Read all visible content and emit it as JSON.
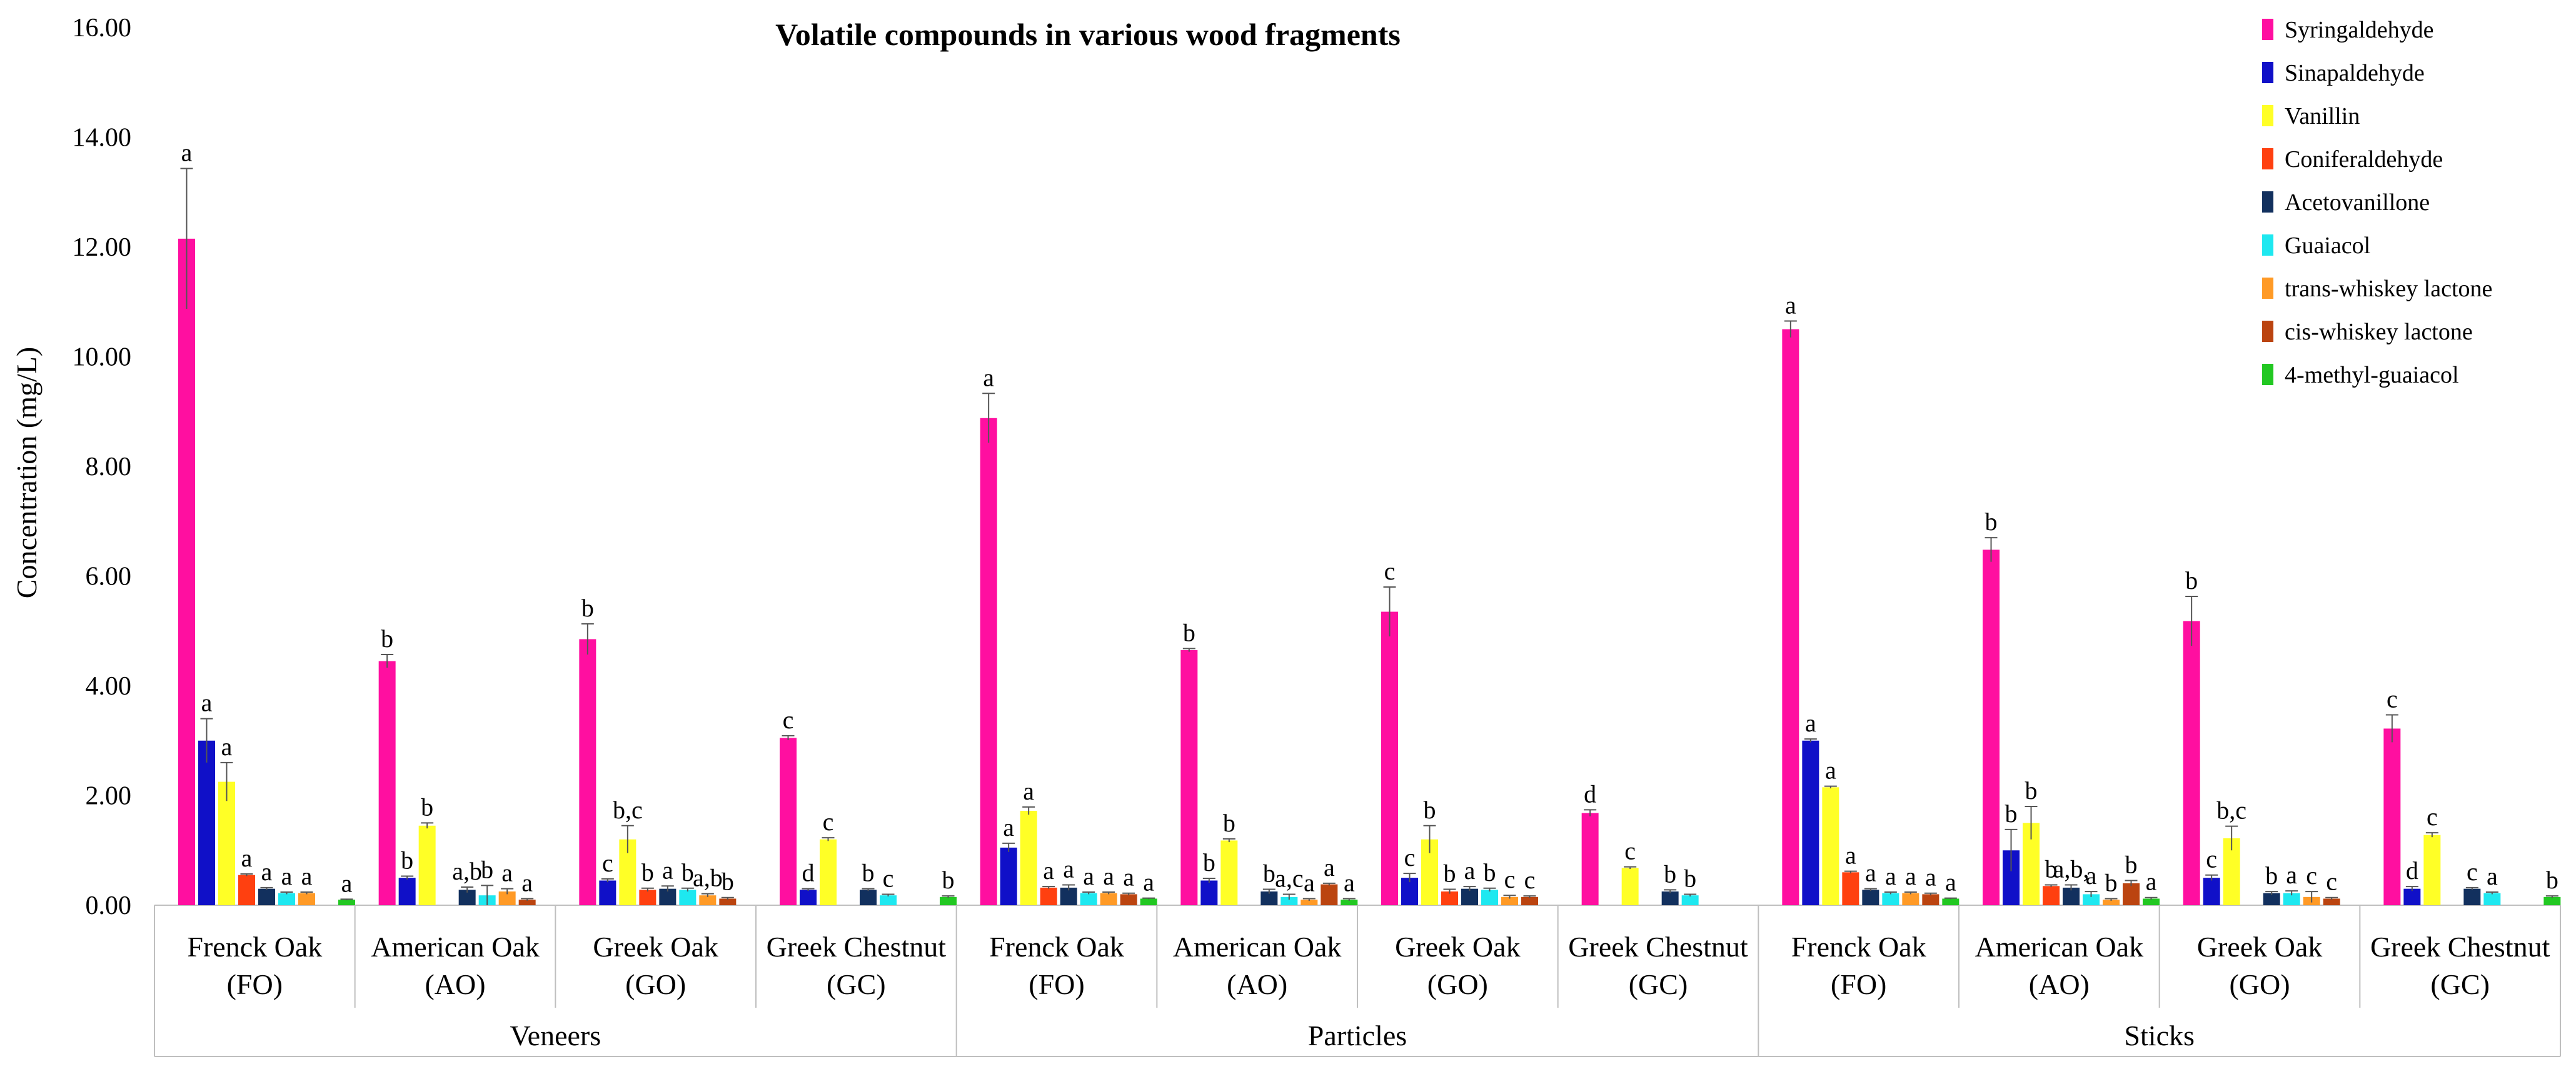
{
  "chart_data": {
    "type": "bar",
    "title": "Volatile compounds in various wood fragments",
    "xlabel": "",
    "ylabel": "Concentration (mg/L)",
    "ylim": [
      0,
      16
    ],
    "yticks": [
      "0.00",
      "2.00",
      "4.00",
      "6.00",
      "8.00",
      "10.00",
      "12.00",
      "14.00",
      "16.00"
    ],
    "grid": false,
    "legend_position": "top-right",
    "groups": [
      {
        "label": "Veneers",
        "categories": [
          {
            "line1": "Frenck Oak",
            "line2": "(FO)"
          },
          {
            "line1": "American Oak",
            "line2": "(AO)"
          },
          {
            "line1": "Greek Oak",
            "line2": "(GO)"
          },
          {
            "line1": "Greek Chestnut",
            "line2": "(GC)"
          }
        ]
      },
      {
        "label": "Particles",
        "categories": [
          {
            "line1": "Frenck Oak",
            "line2": "(FO)"
          },
          {
            "line1": "American Oak",
            "line2": "(AO)"
          },
          {
            "line1": "Greek Oak",
            "line2": "(GO)"
          },
          {
            "line1": "Greek Chestnut",
            "line2": "(GC)"
          }
        ]
      },
      {
        "label": "Sticks",
        "categories": [
          {
            "line1": "Frenck Oak",
            "line2": "(FO)"
          },
          {
            "line1": "American Oak",
            "line2": "(AO)"
          },
          {
            "line1": "Greek Oak",
            "line2": "(GO)"
          },
          {
            "line1": "Greek Chestnut",
            "line2": "(GC)"
          }
        ]
      }
    ],
    "series": [
      {
        "name": "Syringaldehyde",
        "color": "#ff0fa0",
        "values": [
          12.15,
          4.45,
          4.85,
          3.05,
          8.88,
          4.65,
          5.35,
          1.68,
          10.5,
          6.48,
          5.18,
          3.22
        ],
        "errors": [
          1.28,
          0.12,
          0.28,
          0.04,
          0.45,
          0.03,
          0.45,
          0.06,
          0.15,
          0.22,
          0.45,
          0.25
        ],
        "labels": [
          "a",
          "b",
          "b",
          "c",
          "a",
          "b",
          "c",
          "d",
          "a",
          "b",
          "b",
          "c"
        ]
      },
      {
        "name": "Sinapaldehyde",
        "color": "#1010c8",
        "values": [
          3.0,
          0.5,
          0.45,
          0.28,
          1.05,
          0.45,
          0.5,
          0,
          3.0,
          1.0,
          0.5,
          0.3
        ],
        "errors": [
          0.4,
          0.03,
          0.03,
          0.02,
          0.08,
          0.04,
          0.08,
          0,
          0.03,
          0.38,
          0.05,
          0.04
        ],
        "labels": [
          "a",
          "b",
          "c",
          "d",
          "a",
          "b",
          "c",
          "",
          "a",
          "b",
          "c",
          "d"
        ]
      },
      {
        "name": "Vanillin",
        "color": "#ffff26",
        "values": [
          2.25,
          1.45,
          1.2,
          1.2,
          1.72,
          1.18,
          1.2,
          0.68,
          2.15,
          1.5,
          1.22,
          1.28
        ],
        "errors": [
          0.35,
          0.05,
          0.25,
          0.03,
          0.07,
          0.03,
          0.25,
          0.02,
          0.02,
          0.3,
          0.22,
          0.04
        ],
        "labels": [
          "a",
          "b",
          "b,c",
          "c",
          "a",
          "b",
          "b",
          "c",
          "a",
          "b",
          "b,c",
          "c"
        ]
      },
      {
        "name": "Coniferaldehyde",
        "color": "#ff4010",
        "values": [
          0.55,
          0,
          0.28,
          0,
          0.32,
          0,
          0.25,
          0,
          0.6,
          0.35,
          0,
          0
        ],
        "errors": [
          0.02,
          0,
          0.03,
          0,
          0.02,
          0,
          0.04,
          0,
          0.02,
          0.02,
          0,
          0
        ],
        "labels": [
          "a",
          "",
          "b",
          "",
          "a",
          "",
          "b",
          "",
          "a",
          "b",
          "",
          ""
        ]
      },
      {
        "name": "Acetovanillone",
        "color": "#12305e",
        "values": [
          0.3,
          0.28,
          0.3,
          0.28,
          0.32,
          0.25,
          0.3,
          0.25,
          0.28,
          0.32,
          0.22,
          0.3
        ],
        "errors": [
          0.02,
          0.05,
          0.05,
          0.02,
          0.05,
          0.04,
          0.04,
          0.03,
          0.02,
          0.05,
          0.03,
          0.02
        ],
        "labels": [
          "a",
          "a,b",
          "a",
          "b",
          "a",
          "b",
          "a",
          "b",
          "a",
          "a,b,",
          "b",
          "c"
        ]
      },
      {
        "name": "Guaiacol",
        "color": "#1ee8f0",
        "values": [
          0.22,
          0.18,
          0.28,
          0.18,
          0.22,
          0.15,
          0.28,
          0.18,
          0.22,
          0.2,
          0.22,
          0.22
        ],
        "errors": [
          0.02,
          0.18,
          0.03,
          0.02,
          0.02,
          0.05,
          0.03,
          0.02,
          0.02,
          0.05,
          0.04,
          0.02
        ],
        "labels": [
          "a",
          "b",
          "b",
          "c",
          "a",
          "a,c",
          "b",
          "b",
          "a",
          "a",
          "a",
          "a"
        ]
      },
      {
        "name": "trans-whiskey lactone",
        "color": "#ff9a26",
        "values": [
          0.22,
          0.25,
          0.18,
          0,
          0.22,
          0.1,
          0.15,
          0,
          0.22,
          0.1,
          0.15,
          0
        ],
        "errors": [
          0.02,
          0.05,
          0.03,
          0,
          0.02,
          0.02,
          0.03,
          0,
          0.02,
          0.02,
          0.1,
          0
        ],
        "labels": [
          "a",
          "a",
          "a,b",
          "",
          "a",
          "a",
          "c",
          "",
          "a",
          "b",
          "c",
          ""
        ]
      },
      {
        "name": "cis-whiskey lactone",
        "color": "#bb4410",
        "values": [
          0,
          0.1,
          0.12,
          0,
          0.2,
          0.38,
          0.15,
          0,
          0.2,
          0.4,
          0.12,
          0
        ],
        "errors": [
          0,
          0.02,
          0.02,
          0,
          0.02,
          0.02,
          0.02,
          0,
          0.02,
          0.05,
          0.02,
          0
        ],
        "labels": [
          "",
          "a",
          "b",
          "",
          "a",
          "a",
          "c",
          "",
          "a",
          "b",
          "c",
          ""
        ]
      },
      {
        "name": "4-methyl-guaiacol",
        "color": "#22c822",
        "values": [
          0.1,
          0,
          0,
          0.15,
          0.12,
          0.1,
          0,
          0,
          0.12,
          0.12,
          0,
          0.15
        ],
        "errors": [
          0.01,
          0,
          0,
          0.02,
          0.01,
          0.02,
          0,
          0,
          0.01,
          0.02,
          0,
          0.02
        ],
        "labels": [
          "a",
          "",
          "",
          "b",
          "a",
          "a",
          "",
          "",
          "a",
          "a",
          "",
          "b"
        ]
      }
    ]
  }
}
